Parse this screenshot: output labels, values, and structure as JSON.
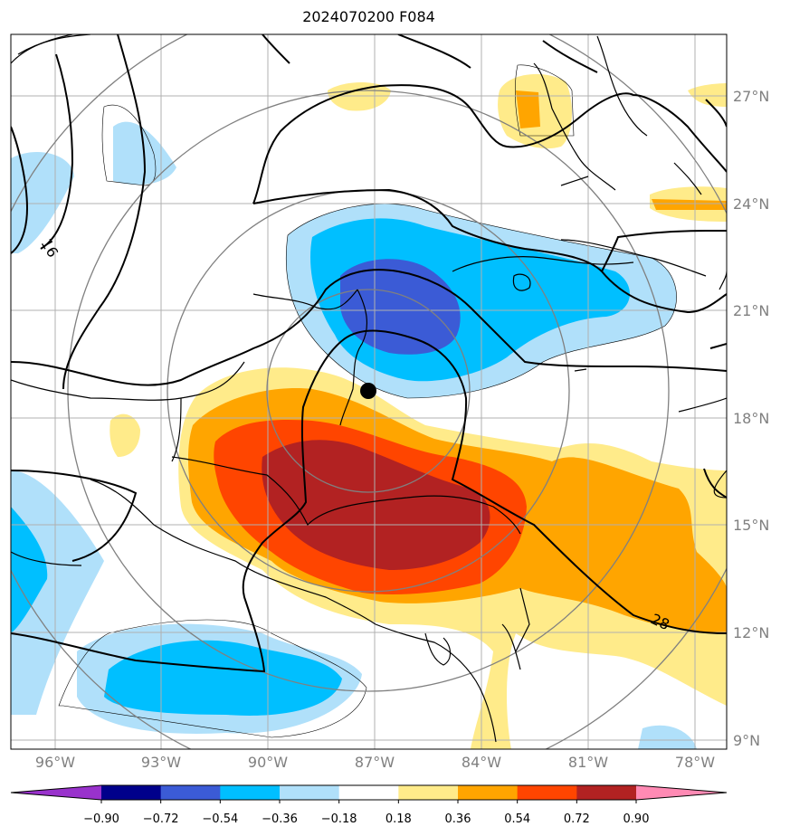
{
  "title": "2024070200 F084",
  "map": {
    "lon_labels": [
      "96°W",
      "93°W",
      "90°W",
      "87°W",
      "84°W",
      "81°W",
      "78°W"
    ],
    "lat_labels": [
      "27°N",
      "24°N",
      "21°N",
      "18°N",
      "15°N",
      "12°N",
      "9°N"
    ],
    "contour_labels": [
      "16",
      "28"
    ],
    "fill_colors": {
      "neg_090": "#9932cc",
      "neg_072": "#00008b",
      "neg_054": "#3b5bd6",
      "neg_036": "#00bfff",
      "neg_018": "#b0e0fa",
      "pos_018": "#ffeb8a",
      "pos_036": "#ffa500",
      "pos_054": "#ff4500",
      "pos_072": "#b22222",
      "pos_090": "#ff8ab4"
    }
  },
  "colorbar": {
    "labels": [
      "−0.90",
      "−0.72",
      "−0.54",
      "−0.36",
      "−0.18",
      "0.18",
      "0.36",
      "0.54",
      "0.72",
      "0.90"
    ],
    "colors": [
      "#9932cc",
      "#00008b",
      "#3b5bd6",
      "#00bfff",
      "#b0e0fa",
      "#ffffff",
      "#ffeb8a",
      "#ffa500",
      "#ff4500",
      "#b22222",
      "#ff8ab4"
    ]
  }
}
